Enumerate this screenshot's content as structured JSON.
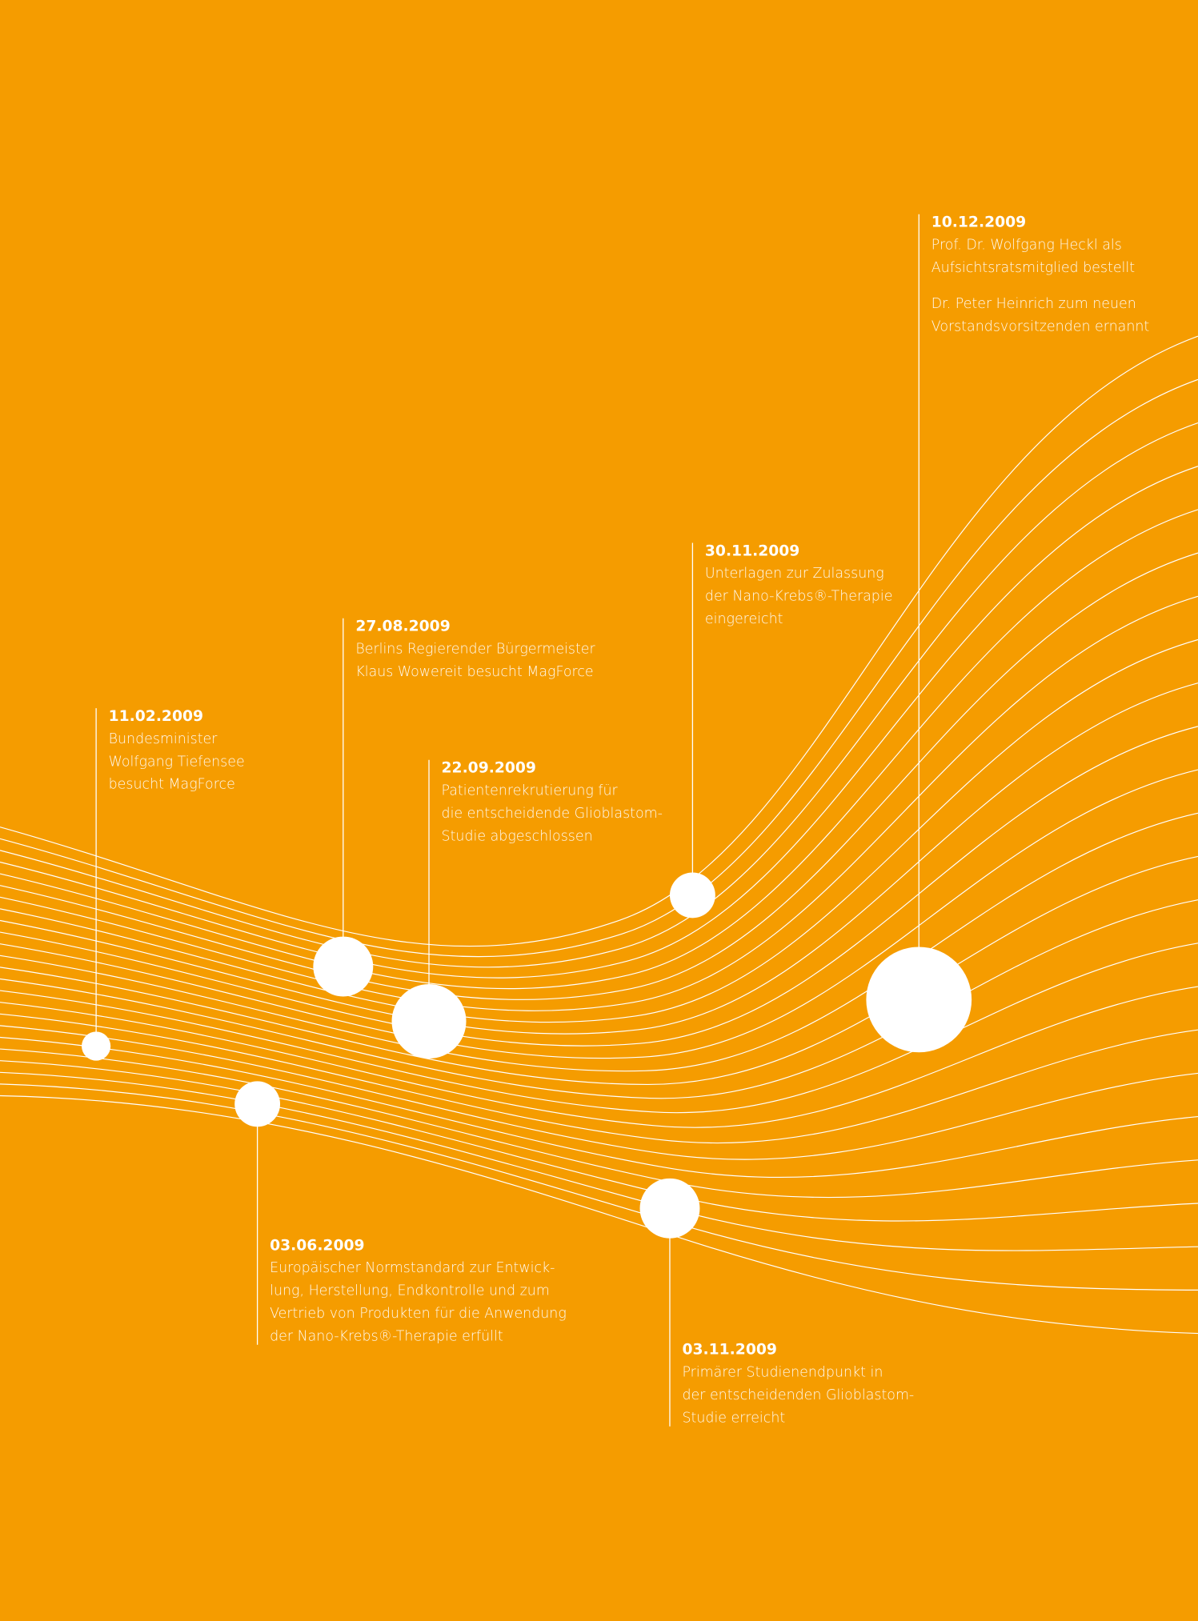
{
  "events": [
    {
      "date": "11.02.2009",
      "paragraphs": [
        [
          "Bundesminister",
          "Wolfgang Tiefensee",
          "besucht MagForce"
        ]
      ]
    },
    {
      "date": "27.08.2009",
      "paragraphs": [
        [
          "Berlins Regierender Bürgermeister",
          "Klaus Wowereit besucht MagForce"
        ]
      ]
    },
    {
      "date": "22.09.2009",
      "paragraphs": [
        [
          "Patientenrekrutierung für",
          "die entscheidende Glioblastom-",
          "Studie abgeschlossen"
        ]
      ]
    },
    {
      "date": "30.11.2009",
      "paragraphs": [
        [
          "Unterlagen zur Zulassung",
          "der Nano-Krebs®-Therapie",
          "eingereicht"
        ]
      ]
    },
    {
      "date": "10.12.2009",
      "paragraphs": [
        [
          "Prof. Dr. Wolfgang Heckl als",
          "Aufsichtsratsmitglied bestellt"
        ],
        [
          "Dr. Peter Heinrich zum neuen",
          "Vorstandsvorsitzenden ernannt"
        ]
      ]
    },
    {
      "date": "03.06.2009",
      "paragraphs": [
        [
          "Europäischer Normstandard zur Entwick-",
          "lung, Herstellung, Endkontrolle und zum",
          "Vertrieb von Produkten für die Anwendung",
          "der Nano-Krebs®-Therapie erfüllt"
        ]
      ]
    },
    {
      "date": "03.11.2009",
      "paragraphs": [
        [
          "Primärer Studienendpunkt in",
          "der entscheidenden Glioblastom-",
          "Studie erreicht"
        ]
      ]
    }
  ]
}
